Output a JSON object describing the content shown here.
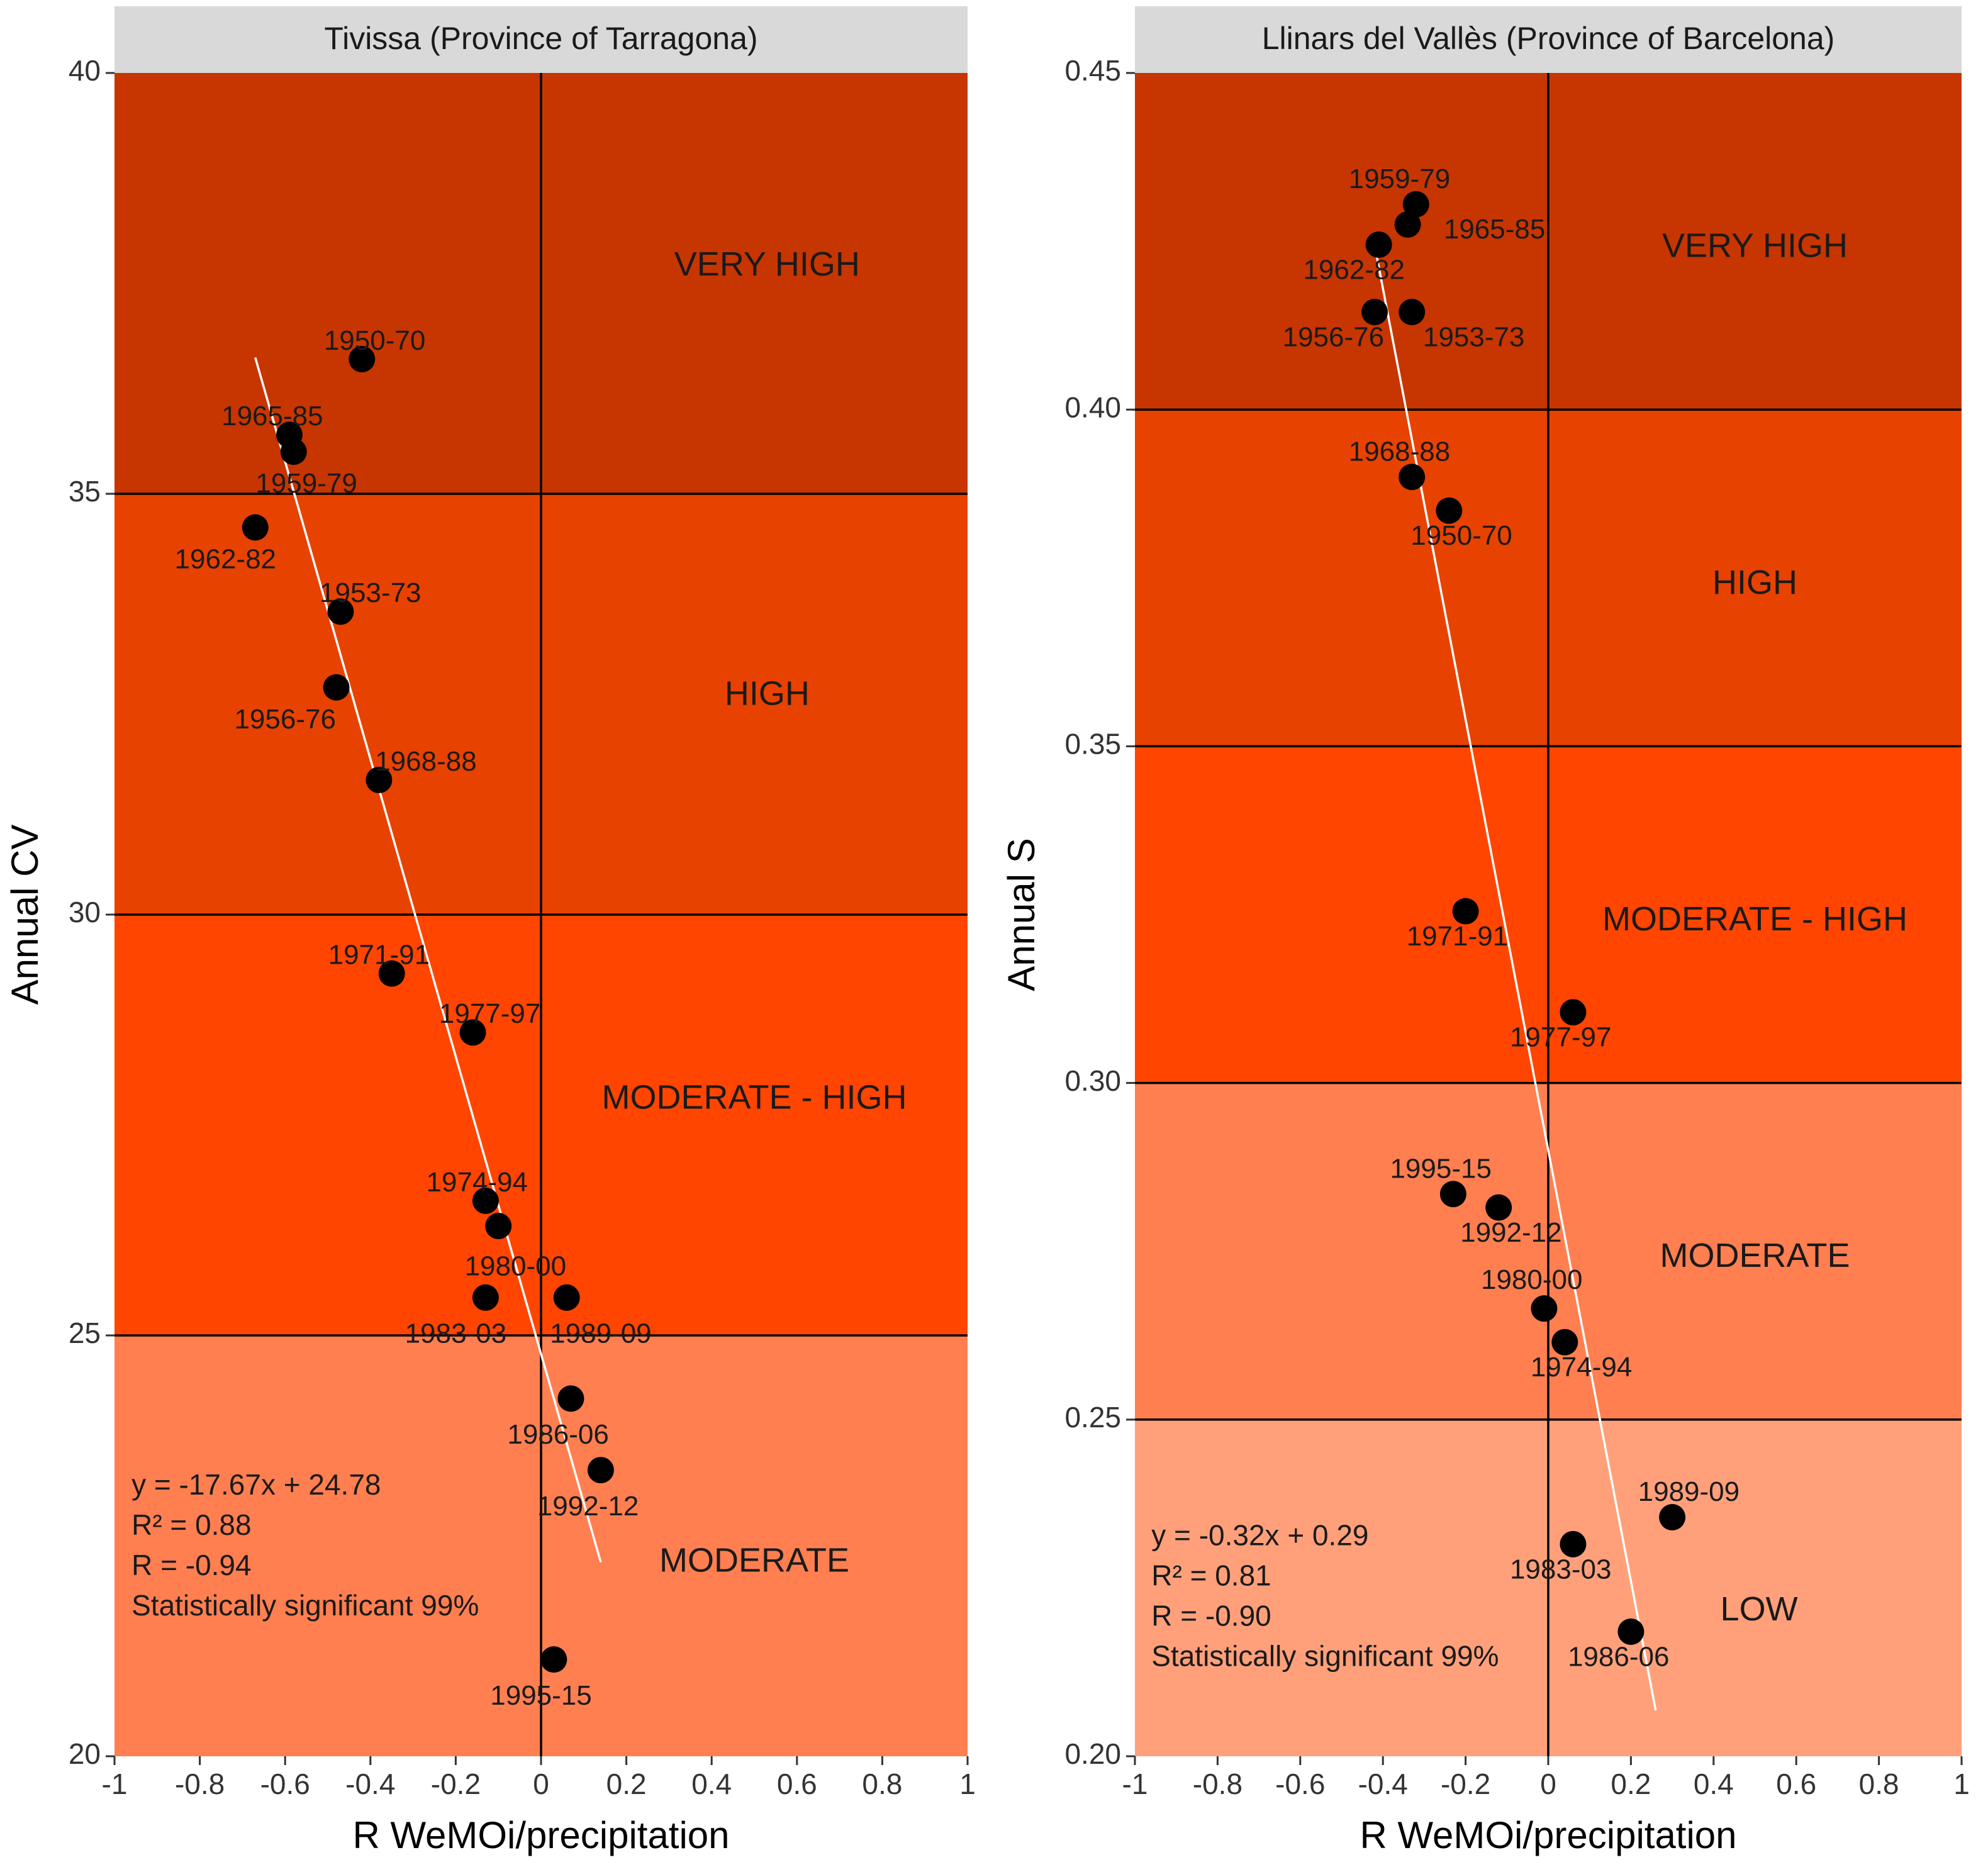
{
  "colors": {
    "strip": "#d9d9d9",
    "very_high": "#c73500",
    "high": "#e84200",
    "moderate_high": "#ff4500",
    "moderate": "#ff7f50",
    "low": "#ffa07a",
    "point": "#000000",
    "fit_line": "#ffffff"
  },
  "chart_data": [
    {
      "type": "scatter",
      "title": "Tivissa (Province of Tarragona)",
      "xlabel": "R WeMOi/precipitation",
      "ylabel": "Annual CV",
      "xlim": [
        -1,
        1
      ],
      "ylim": [
        20,
        40
      ],
      "xticks": [
        -1,
        -0.8,
        -0.6,
        -0.4,
        -0.2,
        0,
        0.2,
        0.4,
        0.6,
        0.8,
        1
      ],
      "xtick_labels": [
        "-1",
        "-0.8",
        "-0.6",
        "-0.4",
        "-0.2",
        "0",
        "0.2",
        "0.4",
        "0.6",
        "0.8",
        "1"
      ],
      "yticks": [
        20,
        25,
        30,
        35,
        40
      ],
      "ytick_labels": [
        "20",
        "25",
        "30",
        "35",
        "40"
      ],
      "zones": [
        {
          "label": "VERY HIGH",
          "from": 35,
          "to": 40,
          "color_key": "very_high",
          "label_x": 0.53,
          "label_y": 37.7
        },
        {
          "label": "HIGH",
          "from": 30,
          "to": 35,
          "color_key": "high",
          "label_x": 0.53,
          "label_y": 32.6
        },
        {
          "label": "MODERATE - HIGH",
          "from": 25,
          "to": 30,
          "color_key": "moderate_high",
          "label_x": 0.5,
          "label_y": 27.8
        },
        {
          "label": "MODERATE",
          "from": 20,
          "to": 25,
          "color_key": "moderate",
          "label_x": 0.5,
          "label_y": 22.3
        }
      ],
      "points": [
        {
          "label": "1950-70",
          "x": -0.42,
          "y": 36.6,
          "label_x": -0.39,
          "label_y": 36.8
        },
        {
          "label": "1965-85",
          "x": -0.59,
          "y": 35.7,
          "label_x": -0.63,
          "label_y": 35.9
        },
        {
          "label": "1959-79",
          "x": -0.58,
          "y": 35.5,
          "label_x": -0.55,
          "label_y": 35.1
        },
        {
          "label": "1962-82",
          "x": -0.67,
          "y": 34.6,
          "label_x": -0.74,
          "label_y": 34.2
        },
        {
          "label": "1953-73",
          "x": -0.47,
          "y": 33.6,
          "label_x": -0.4,
          "label_y": 33.8
        },
        {
          "label": "1956-76",
          "x": -0.48,
          "y": 32.7,
          "label_x": -0.6,
          "label_y": 32.3
        },
        {
          "label": "1968-88",
          "x": -0.38,
          "y": 31.6,
          "label_x": -0.27,
          "label_y": 31.8
        },
        {
          "label": "1971-91",
          "x": -0.35,
          "y": 29.3,
          "label_x": -0.38,
          "label_y": 29.5
        },
        {
          "label": "1977-97",
          "x": -0.16,
          "y": 28.6,
          "label_x": -0.12,
          "label_y": 28.8
        },
        {
          "label": "1974-94",
          "x": -0.13,
          "y": 26.6,
          "label_x": -0.15,
          "label_y": 26.8
        },
        {
          "label": "1980-00",
          "x": -0.1,
          "y": 26.3,
          "label_x": -0.06,
          "label_y": 25.8
        },
        {
          "label": "1983-03",
          "x": -0.13,
          "y": 25.45,
          "label_x": -0.2,
          "label_y": 25.0
        },
        {
          "label": "1989-09",
          "x": 0.06,
          "y": 25.45,
          "label_x": 0.14,
          "label_y": 25.0
        },
        {
          "label": "1986-06",
          "x": 0.07,
          "y": 24.25,
          "label_x": 0.04,
          "label_y": 23.8
        },
        {
          "label": "1992-12",
          "x": 0.14,
          "y": 23.4,
          "label_x": 0.11,
          "label_y": 22.95
        },
        {
          "label": "1995-15",
          "x": 0.03,
          "y": 21.15,
          "label_x": 0.0,
          "label_y": 20.7
        }
      ],
      "fit": {
        "slope": -17.67,
        "intercept": 24.78,
        "x_from": -0.67,
        "x_to": 0.14
      },
      "stats": {
        "equation": "y = -17.67x + 24.78",
        "r2": "R² = 0.88",
        "r": "R = -0.94",
        "significance": "Statistically significant 99%"
      },
      "stats_anchor": {
        "x": -0.96,
        "y": 23.2
      }
    },
    {
      "type": "scatter",
      "title": "Llinars del Vallès (Province of Barcelona)",
      "xlabel": "R WeMOi/precipitation",
      "ylabel": "Annual S",
      "xlim": [
        -1,
        1
      ],
      "ylim": [
        0.2,
        0.45
      ],
      "xticks": [
        -1,
        -0.8,
        -0.6,
        -0.4,
        -0.2,
        0,
        0.2,
        0.4,
        0.6,
        0.8,
        1
      ],
      "xtick_labels": [
        "-1",
        "-0.8",
        "-0.6",
        "-0.4",
        "-0.2",
        "0",
        "0.2",
        "0.4",
        "0.6",
        "0.8",
        "1"
      ],
      "yticks": [
        0.2,
        0.25,
        0.3,
        0.35,
        0.4,
        0.45
      ],
      "ytick_labels": [
        "0.20",
        "0.25",
        "0.30",
        "0.35",
        "0.40",
        "0.45"
      ],
      "zones": [
        {
          "label": "VERY HIGH",
          "from": 0.4,
          "to": 0.45,
          "color_key": "very_high",
          "label_x": 0.5,
          "label_y": 0.424
        },
        {
          "label": "HIGH",
          "from": 0.35,
          "to": 0.4,
          "color_key": "high",
          "label_x": 0.5,
          "label_y": 0.374
        },
        {
          "label": "MODERATE - HIGH",
          "from": 0.3,
          "to": 0.35,
          "color_key": "moderate_high",
          "label_x": 0.5,
          "label_y": 0.324
        },
        {
          "label": "MODERATE",
          "from": 0.25,
          "to": 0.3,
          "color_key": "moderate",
          "label_x": 0.5,
          "label_y": 0.274
        },
        {
          "label": "LOW",
          "from": 0.2,
          "to": 0.25,
          "color_key": "low",
          "label_x": 0.51,
          "label_y": 0.2215
        }
      ],
      "points": [
        {
          "label": "1959-79",
          "x": -0.32,
          "y": 0.4305,
          "label_x": -0.36,
          "label_y": 0.434
        },
        {
          "label": "1965-85",
          "x": -0.34,
          "y": 0.4275,
          "label_x": -0.13,
          "label_y": 0.4265
        },
        {
          "label": "1962-82",
          "x": -0.41,
          "y": 0.4245,
          "label_x": -0.47,
          "label_y": 0.4205
        },
        {
          "label": "1956-76",
          "x": -0.42,
          "y": 0.4145,
          "label_x": -0.52,
          "label_y": 0.4105
        },
        {
          "label": "1953-73",
          "x": -0.33,
          "y": 0.4145,
          "label_x": -0.18,
          "label_y": 0.4105
        },
        {
          "label": "1968-88",
          "x": -0.33,
          "y": 0.39,
          "label_x": -0.36,
          "label_y": 0.3935
        },
        {
          "label": "1950-70",
          "x": -0.24,
          "y": 0.385,
          "label_x": -0.21,
          "label_y": 0.381
        },
        {
          "label": "1971-91",
          "x": -0.2,
          "y": 0.3255,
          "label_x": -0.22,
          "label_y": 0.3215
        },
        {
          "label": "1977-97",
          "x": 0.06,
          "y": 0.3105,
          "label_x": 0.03,
          "label_y": 0.3065
        },
        {
          "label": "1995-15",
          "x": -0.23,
          "y": 0.2835,
          "label_x": -0.26,
          "label_y": 0.287
        },
        {
          "label": "1992-12",
          "x": -0.12,
          "y": 0.2815,
          "label_x": -0.09,
          "label_y": 0.2775
        },
        {
          "label": "1980-00",
          "x": -0.01,
          "y": 0.2665,
          "label_x": -0.04,
          "label_y": 0.2705
        },
        {
          "label": "1974-94",
          "x": 0.04,
          "y": 0.2615,
          "label_x": 0.08,
          "label_y": 0.2575
        },
        {
          "label": "1989-09",
          "x": 0.3,
          "y": 0.2355,
          "label_x": 0.34,
          "label_y": 0.239
        },
        {
          "label": "1983-03",
          "x": 0.06,
          "y": 0.2315,
          "label_x": 0.03,
          "label_y": 0.2275
        },
        {
          "label": "1986-06",
          "x": 0.2,
          "y": 0.2185,
          "label_x": 0.17,
          "label_y": 0.2145
        }
      ],
      "fit": {
        "slope": -0.32,
        "intercept": 0.29,
        "x_from": -0.42,
        "x_to": 0.26
      },
      "stats": {
        "equation": "y = -0.32x + 0.29",
        "r2": "R² = 0.81",
        "r": "R = -0.90",
        "significance": "Statistically significant 99%"
      },
      "stats_anchor": {
        "x": -0.96,
        "y": 0.2325
      }
    }
  ]
}
